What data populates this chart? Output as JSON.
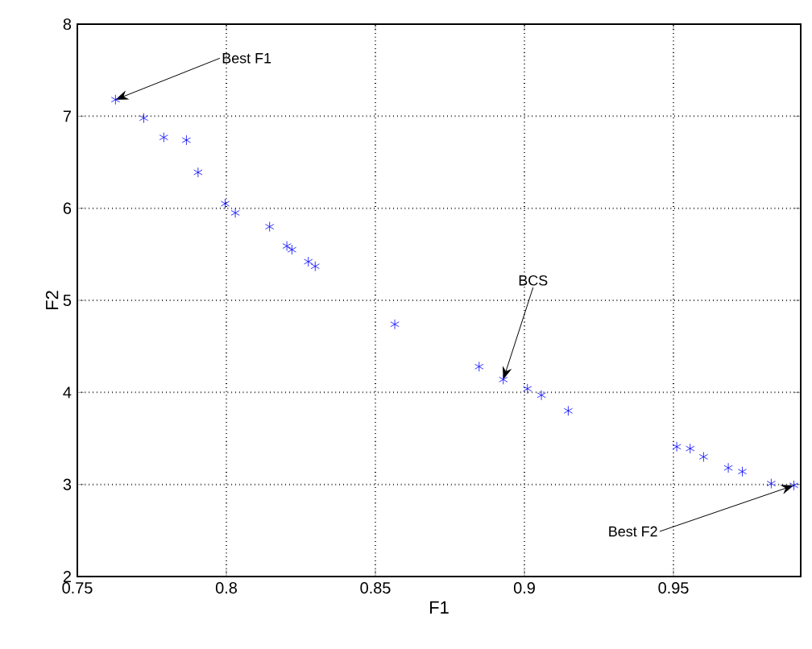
{
  "chart_data": {
    "type": "scatter",
    "xlabel": "F1",
    "ylabel": "F2",
    "marker": "cross",
    "grid": true,
    "xlim": [
      0.75,
      0.9927
    ],
    "ylim": [
      2,
      8
    ],
    "xticks": [
      0.75,
      0.8,
      0.85,
      0.9,
      0.95
    ],
    "yticks": [
      2,
      3,
      4,
      5,
      6,
      7,
      8
    ],
    "series": [
      {
        "color": "#0000ff",
        "x": [
          0.7628,
          0.7723,
          0.779,
          0.7866,
          0.7905,
          0.7996,
          0.803,
          0.8145,
          0.8203,
          0.822,
          0.8275,
          0.8298,
          0.8565,
          0.8848,
          0.8929,
          0.901,
          0.9057,
          0.9147,
          0.9511,
          0.9556,
          0.9601,
          0.9684,
          0.9731,
          0.9828,
          0.9904
        ],
        "values": [
          7.18,
          6.98,
          6.77,
          6.74,
          6.39,
          6.05,
          5.95,
          5.8,
          5.59,
          5.55,
          5.42,
          5.37,
          4.74,
          4.28,
          4.14,
          4.04,
          3.97,
          3.8,
          3.41,
          3.39,
          3.3,
          3.18,
          3.14,
          3.01,
          2.99
        ]
      }
    ],
    "annotations": [
      {
        "text": "Best F1",
        "x": 0.7628,
        "y": 7.18
      },
      {
        "text": "BCS",
        "x": 0.8929,
        "y": 4.14
      },
      {
        "text": "Best F2",
        "x": 0.9904,
        "y": 2.99
      }
    ]
  }
}
